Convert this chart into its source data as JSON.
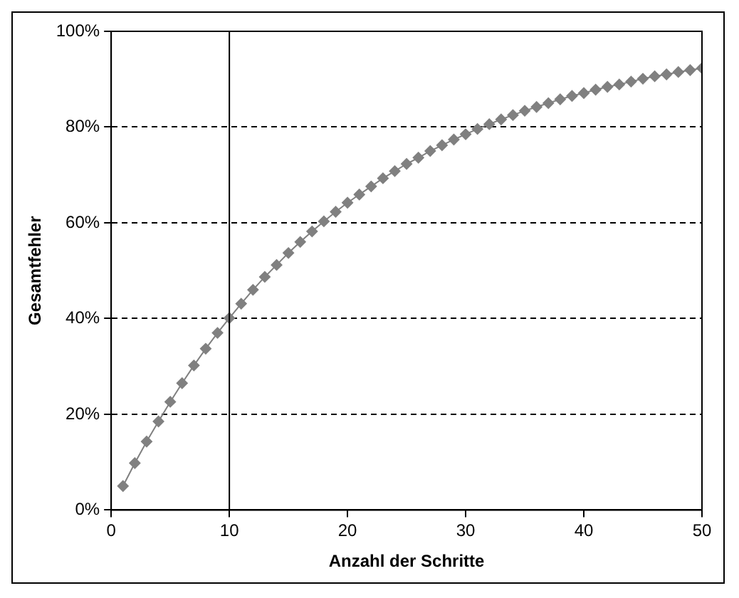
{
  "chart_data": {
    "type": "line",
    "xlabel": "Anzahl der Schritte",
    "ylabel": "Gesamtfehler",
    "x": [
      1,
      2,
      3,
      4,
      5,
      6,
      7,
      8,
      9,
      10,
      11,
      12,
      13,
      14,
      15,
      16,
      17,
      18,
      19,
      20,
      21,
      22,
      23,
      24,
      25,
      26,
      27,
      28,
      29,
      30,
      31,
      32,
      33,
      34,
      35,
      36,
      37,
      38,
      39,
      40,
      41,
      42,
      43,
      44,
      45,
      46,
      47,
      48,
      49,
      50
    ],
    "series": [
      {
        "color": "#808080",
        "values": [
          5.0,
          9.8,
          14.3,
          18.5,
          22.6,
          26.5,
          30.2,
          33.7,
          37.0,
          40.1,
          43.1,
          46.0,
          48.7,
          51.2,
          53.7,
          56.0,
          58.2,
          60.3,
          62.3,
          64.2,
          65.9,
          67.6,
          69.3,
          70.8,
          72.3,
          73.6,
          75.0,
          76.2,
          77.4,
          78.5,
          79.6,
          80.6,
          81.6,
          82.5,
          83.4,
          84.2,
          85.0,
          85.8,
          86.5,
          87.1,
          87.8,
          88.4,
          88.9,
          89.5,
          90.1,
          90.6,
          91.0,
          91.5,
          91.9,
          92.3
        ]
      }
    ],
    "xlim": [
      0,
      50
    ],
    "xticks": [
      0,
      10,
      20,
      30,
      40,
      50
    ],
    "ylim": [
      0,
      100
    ],
    "yticks": [
      {
        "value": 0,
        "label": "0%"
      },
      {
        "value": 20,
        "label": "20%"
      },
      {
        "value": 40,
        "label": "40%"
      },
      {
        "value": 60,
        "label": "60%"
      },
      {
        "value": 80,
        "label": "80%"
      },
      {
        "value": 100,
        "label": "100%"
      }
    ],
    "grid": "y",
    "marker": "diamond",
    "line_style": "solid",
    "legend": false,
    "ref_lines": [
      {
        "axis": "x",
        "value": 10,
        "color": "#000000"
      }
    ]
  }
}
